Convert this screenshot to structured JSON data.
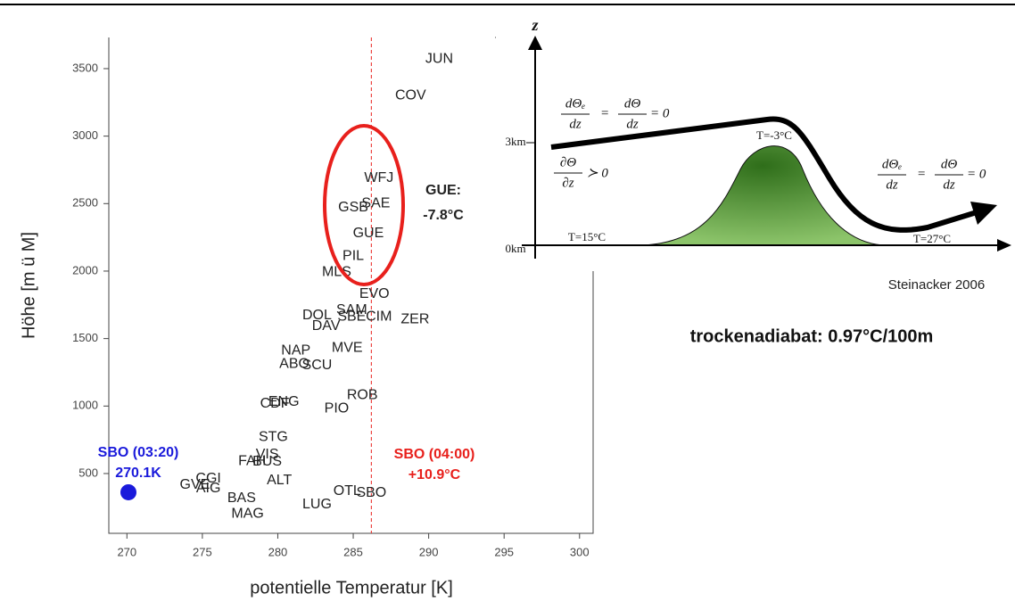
{
  "chart_data": {
    "type": "scatter",
    "xlabel": "potentielle Temperatur [K]",
    "ylabel": "Höhe [m ü M]",
    "xlim": [
      268.8,
      300.9
    ],
    "ylim": [
      57,
      3731
    ],
    "xticks": [
      270,
      275,
      280,
      285,
      290,
      295,
      300
    ],
    "yticks": [
      500,
      1000,
      1500,
      2000,
      2500,
      3000,
      3500
    ],
    "labels": [
      "JUN",
      "COV",
      "WFJ",
      "SAE",
      "GSB",
      "GUE",
      "PIL",
      "MLS",
      "EVO",
      "SAM",
      "DOL",
      "DAV",
      "SBE",
      "CIM",
      "ZER",
      "MVE",
      "NAP",
      "ABO",
      "SCU",
      "ENG",
      "CDF",
      "ROB",
      "PIO",
      "STG",
      "VIS",
      "FAH",
      "BUS",
      "CGI",
      "AIG",
      "GVE",
      "ALT",
      "BAS",
      "MAG",
      "LUG",
      "OTL",
      "SBO"
    ],
    "x": [
      290.7,
      288.8,
      286.7,
      286.5,
      285.0,
      286.0,
      285.0,
      283.9,
      286.4,
      284.9,
      282.6,
      283.2,
      284.9,
      286.7,
      289.1,
      284.6,
      281.2,
      281.1,
      282.6,
      280.4,
      279.8,
      285.6,
      283.9,
      279.7,
      279.3,
      278.3,
      279.3,
      275.4,
      275.4,
      274.5,
      280.1,
      277.6,
      278.0,
      282.6,
      284.6,
      286.2
    ],
    "values": [
      3570,
      3300,
      2690,
      2500,
      2470,
      2280,
      2110,
      1990,
      1830,
      1710,
      1670,
      1590,
      1660,
      1660,
      1640,
      1430,
      1410,
      1310,
      1300,
      1030,
      1015,
      1080,
      980,
      770,
      640,
      590,
      586,
      460,
      388,
      414,
      447,
      315,
      200,
      270,
      370,
      355
    ],
    "point_colors": [
      "#222",
      "#222",
      "#222",
      "#222",
      "#222",
      "#222",
      "#222",
      "#222",
      "#222",
      "#222",
      "#222",
      "#222",
      "#222",
      "#222",
      "#222",
      "#222",
      "#222",
      "#222",
      "#222",
      "#222",
      "#222",
      "#222",
      "#222",
      "#222",
      "#222",
      "#222",
      "#222",
      "#222",
      "#222",
      "#222",
      "#222",
      "#222",
      "#222",
      "#222",
      "#222",
      "#e8201c"
    ],
    "marker": {
      "x": 270.1,
      "y": 361,
      "color": "#1a1adb"
    },
    "vline": {
      "x": 286.2,
      "color": "#e8201c"
    },
    "annotations": {
      "sbo_early": [
        "SBO (03:20)",
        "270.1K"
      ],
      "sbo_late": [
        "SBO (04:00)",
        "+10.9°C"
      ],
      "gue": [
        "GUE:",
        "-7.8°C"
      ]
    }
  },
  "diagram": {
    "z": "z",
    "km3": "3km",
    "km0": "0km",
    "eq_left": {
      "n1": "dΘₑ",
      "d1": "dz",
      "eq": "=",
      "n2": "dΘ",
      "d2": "dz",
      "rhs": "= 0"
    },
    "eq_right": {
      "n1": "dΘₑ",
      "d1": "dz",
      "eq": "=",
      "n2": "dΘ",
      "d2": "dz",
      "rhs": "= 0"
    },
    "eq_mid": {
      "n": "∂Θ",
      "d": "∂z",
      "rhs": "≻ 0"
    },
    "t_top": "T=-3°C",
    "t_left": "T=15°C",
    "t_right": "T=27°C",
    "credit": "Steinacker 2006",
    "note": "trockenadiabat: 0.97°C/100m"
  }
}
